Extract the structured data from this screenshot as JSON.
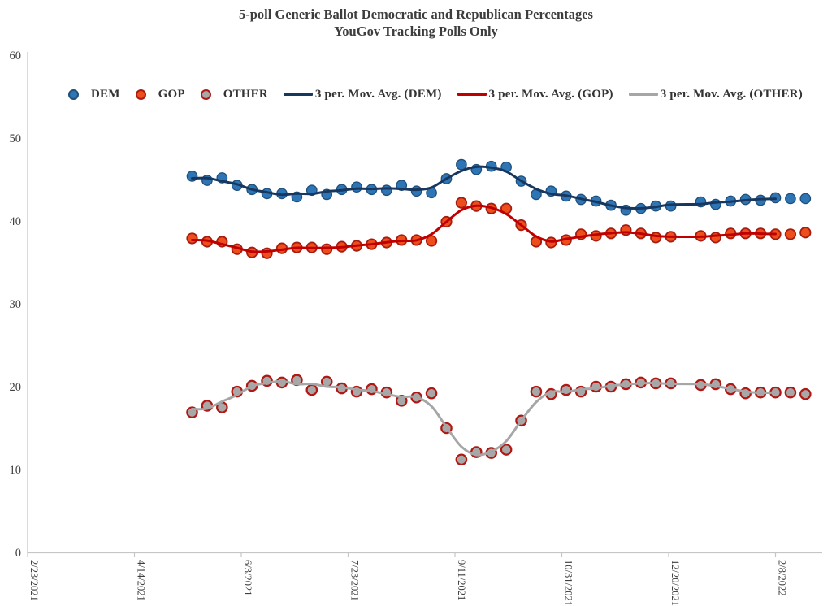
{
  "title": {
    "line1": "5-poll Generic Ballot Democratic and Republican Percentages",
    "line2": "YouGov Tracking Polls Only"
  },
  "legend": {
    "position": "top",
    "items": [
      {
        "id": "dem",
        "label": "DEM",
        "type": "marker",
        "fill": "#2E75B6",
        "stroke": "#1F4E79"
      },
      {
        "id": "gop",
        "label": "GOP",
        "type": "marker",
        "fill": "#EE4E1C",
        "stroke": "#A61C10"
      },
      {
        "id": "other",
        "label": "OTHER",
        "type": "marker",
        "fill": "#A8A8A8",
        "stroke": "#B01814"
      },
      {
        "id": "ma-dem",
        "label": "3 per. Mov. Avg. (DEM)",
        "type": "line",
        "color": "#17375E"
      },
      {
        "id": "ma-gop",
        "label": "3 per. Mov. Avg. (GOP)",
        "type": "line",
        "color": "#C00000"
      },
      {
        "id": "ma-other",
        "label": "3 per. Mov. Avg. (OTHER)",
        "type": "line",
        "color": "#A6A6A6"
      }
    ]
  },
  "chart_data": {
    "type": "scatter",
    "title": "5-poll Generic Ballot Democratic and Republican Percentages",
    "subtitle": "YouGov Tracking Polls Only",
    "grid": false,
    "legend_position": "top",
    "x_axis": {
      "start_date": "2/23/2021",
      "tick_interval_days": 50,
      "tick_labels": [
        "2/23/2021",
        "4/14/2021",
        "6/3/2021",
        "7/23/2021",
        "9/11/2021",
        "10/31/2021",
        "12/20/2021",
        "2/8/2022"
      ]
    },
    "y_axis": {
      "min": 0,
      "max": 60,
      "ticks": [
        0,
        10,
        20,
        30,
        40,
        50,
        60
      ]
    },
    "x_dates": [
      "5/11/2021",
      "5/18/2021",
      "5/25/2021",
      "6/1/2021",
      "6/8/2021",
      "6/15/2021",
      "6/22/2021",
      "6/29/2021",
      "7/6/2021",
      "7/13/2021",
      "7/20/2021",
      "7/27/2021",
      "8/3/2021",
      "8/10/2021",
      "8/17/2021",
      "8/24/2021",
      "8/31/2021",
      "9/7/2021",
      "9/14/2021",
      "9/21/2021",
      "9/28/2021",
      "10/5/2021",
      "10/12/2021",
      "10/19/2021",
      "10/26/2021",
      "11/2/2021",
      "11/9/2021",
      "11/16/2021",
      "11/23/2021",
      "11/30/2021",
      "12/7/2021",
      "12/14/2021",
      "12/21/2021",
      "1/4/2022",
      "1/11/2022",
      "1/18/2022",
      "1/25/2022",
      "2/1/2022",
      "2/8/2022",
      "2/15/2022",
      "2/22/2022"
    ],
    "series": [
      {
        "name": "DEM",
        "marker_fill": "#2E75B6",
        "marker_stroke": "#1F4E79",
        "values": [
          45.4,
          44.9,
          45.2,
          44.3,
          43.8,
          43.3,
          43.3,
          42.9,
          43.7,
          43.2,
          43.8,
          44.1,
          43.8,
          43.7,
          44.3,
          43.6,
          43.4,
          45.1,
          46.8,
          46.2,
          46.6,
          46.5,
          44.8,
          43.2,
          43.6,
          43.0,
          42.6,
          42.4,
          41.9,
          41.3,
          41.5,
          41.8,
          41.8,
          42.3,
          42.0,
          42.4,
          42.6,
          42.5,
          42.8,
          42.7,
          42.7
        ]
      },
      {
        "name": "GOP",
        "marker_fill": "#EE4E1C",
        "marker_stroke": "#A61C10",
        "values": [
          37.9,
          37.5,
          37.5,
          36.6,
          36.2,
          36.1,
          36.7,
          36.8,
          36.8,
          36.6,
          36.9,
          37.0,
          37.2,
          37.4,
          37.7,
          37.7,
          37.6,
          39.9,
          42.2,
          41.8,
          41.5,
          41.5,
          39.5,
          37.5,
          37.4,
          37.7,
          38.4,
          38.2,
          38.5,
          38.9,
          38.5,
          38.0,
          38.1,
          38.2,
          38.0,
          38.5,
          38.5,
          38.5,
          38.4,
          38.4,
          38.6
        ]
      },
      {
        "name": "OTHER",
        "marker_fill": "#A8A8A8",
        "marker_stroke": "#B01814",
        "values": [
          16.9,
          17.7,
          17.5,
          19.4,
          20.1,
          20.7,
          20.5,
          20.8,
          19.6,
          20.6,
          19.8,
          19.4,
          19.7,
          19.3,
          18.3,
          18.7,
          19.2,
          15.0,
          11.2,
          12.1,
          12.0,
          12.4,
          15.9,
          19.4,
          19.1,
          19.6,
          19.4,
          20.0,
          20.0,
          20.3,
          20.5,
          20.4,
          20.4,
          20.2,
          20.3,
          19.7,
          19.2,
          19.3,
          19.3,
          19.3,
          19.1
        ]
      }
    ],
    "trendlines": [
      {
        "name": "3 per. Mov. Avg. (DEM)",
        "series": "DEM",
        "window": 3,
        "color": "#17375E"
      },
      {
        "name": "3 per. Mov. Avg. (GOP)",
        "series": "GOP",
        "window": 3,
        "color": "#C00000"
      },
      {
        "name": "3 per. Mov. Avg. (OTHER)",
        "series": "OTHER",
        "window": 3,
        "color": "#A6A6A6"
      }
    ]
  },
  "style": {
    "axis_color": "#C6C6C6",
    "tick_label_color": "#3F3F3F",
    "title_color": "#3D3D3D"
  }
}
